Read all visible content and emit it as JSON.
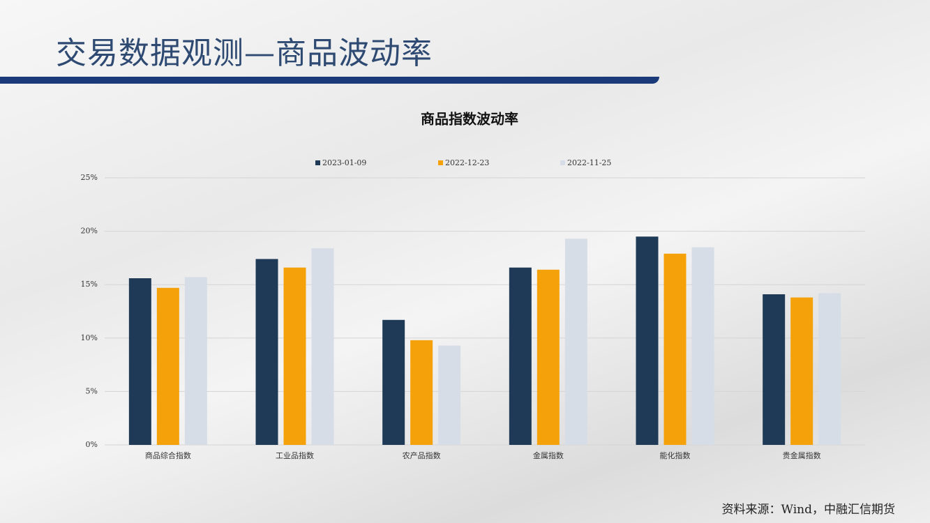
{
  "slide_title": "交易数据观测—商品波动率",
  "source": "资料来源：Wind，中融汇信期货",
  "chart_data": {
    "type": "bar",
    "title": "商品指数波动率",
    "categories": [
      "商品综合指数",
      "工业品指数",
      "农产品指数",
      "金属指数",
      "能化指数",
      "贵金属指数"
    ],
    "series": [
      {
        "name": "2023-01-09",
        "color": "#1f3a56",
        "values": [
          15.6,
          17.4,
          11.7,
          16.6,
          19.5,
          14.1
        ]
      },
      {
        "name": "2022-12-23",
        "color": "#f5a20a",
        "values": [
          14.7,
          16.6,
          9.8,
          16.4,
          17.9,
          13.8
        ]
      },
      {
        "name": "2022-11-25",
        "color": "#d6dde6",
        "values": [
          15.7,
          18.4,
          9.3,
          19.3,
          18.5,
          14.2
        ]
      }
    ],
    "ylim": [
      0,
      25
    ],
    "yticks": [
      {
        "value": 0,
        "label": "0%"
      },
      {
        "value": 5,
        "label": "5%"
      },
      {
        "value": 10,
        "label": "10%"
      },
      {
        "value": 15,
        "label": "15%"
      },
      {
        "value": 20,
        "label": "20%"
      },
      {
        "value": 25,
        "label": "25%"
      }
    ],
    "grid": true,
    "legend": "top"
  }
}
